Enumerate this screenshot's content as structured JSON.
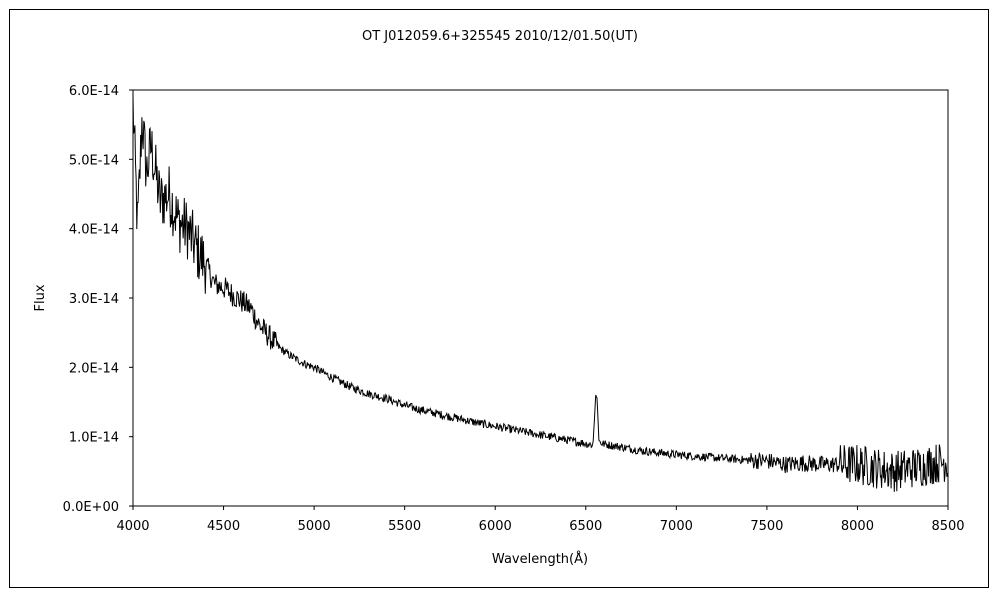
{
  "chart_data": {
    "type": "line",
    "title": "OT J012059.6+325545     2010/12/01.50(UT)",
    "xlabel": "Wavelength(Å)",
    "ylabel": "Flux",
    "xlim": [
      4000,
      8500
    ],
    "ylim": [
      0,
      6e-14
    ],
    "grid": false,
    "x_ticks": [
      "4000",
      "4500",
      "5000",
      "5500",
      "6000",
      "6500",
      "7000",
      "7500",
      "8000",
      "8500"
    ],
    "y_ticks": [
      "0.0E+00",
      "1.0E-14",
      "2.0E-14",
      "3.0E-14",
      "4.0E-14",
      "5.0E-14",
      "6.0E-14"
    ],
    "series": [
      {
        "line_color": "#000000",
        "x": [
          4000,
          4025,
          4050,
          4075,
          4100,
          4150,
          4200,
          4250,
          4300,
          4350,
          4400,
          4450,
          4500,
          4550,
          4600,
          4650,
          4700,
          4750,
          4800,
          4850,
          4900,
          4950,
          5000,
          5100,
          5200,
          5300,
          5400,
          5500,
          5600,
          5700,
          5800,
          5900,
          6000,
          6100,
          6200,
          6300,
          6400,
          6500,
          6540,
          6555,
          6563,
          6572,
          6590,
          6650,
          6700,
          6800,
          6900,
          7000,
          7100,
          7200,
          7300,
          7400,
          7500,
          7600,
          7700,
          7800,
          7900,
          8000,
          8100,
          8200,
          8300,
          8400,
          8500
        ],
        "y": [
          5.8e-14,
          4e-14,
          5.6e-14,
          4.8e-14,
          5.2e-14,
          4.4e-14,
          4.5e-14,
          4.1e-14,
          4e-14,
          3.7e-14,
          3.5e-14,
          3.2e-14,
          3.15e-14,
          3.05e-14,
          2.95e-14,
          2.85e-14,
          2.6e-14,
          2.45e-14,
          2.3e-14,
          2.2e-14,
          2.12e-14,
          2.05e-14,
          2e-14,
          1.85e-14,
          1.72e-14,
          1.62e-14,
          1.55e-14,
          1.45e-14,
          1.38e-14,
          1.32e-14,
          1.26e-14,
          1.2e-14,
          1.15e-14,
          1.1e-14,
          1.05e-14,
          1e-14,
          9.5e-15,
          9e-15,
          8.8e-15,
          1.6e-14,
          1.55e-14,
          9.5e-15,
          9e-15,
          8.7e-15,
          8.5e-15,
          8e-15,
          7.7e-15,
          7.4e-15,
          7.2e-15,
          7e-15,
          6.8e-15,
          6.6e-15,
          6.5e-15,
          6e-15,
          6.2e-15,
          6e-15,
          6e-15,
          6e-15,
          5.5e-15,
          5e-15,
          5.5e-15,
          6e-15,
          6.5e-15
        ]
      }
    ]
  }
}
